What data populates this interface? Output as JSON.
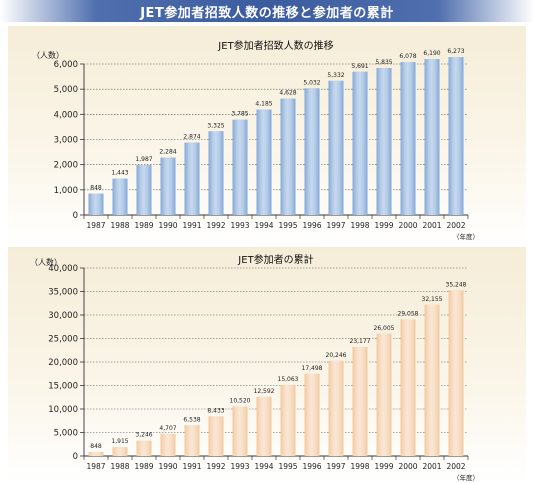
{
  "header": {
    "title": "JET参加者招致人数の推移と参加者の累計"
  },
  "chart_data": [
    {
      "type": "bar",
      "title": "JET参加者招致人数の推移",
      "ylabel": "（人数）",
      "xlabel": "（年度）",
      "categories": [
        "1987",
        "1988",
        "1989",
        "1990",
        "1991",
        "1992",
        "1993",
        "1994",
        "1995",
        "1996",
        "1997",
        "1998",
        "1999",
        "2000",
        "2001",
        "2002"
      ],
      "values": [
        848,
        1443,
        1987,
        2284,
        2874,
        3325,
        3785,
        4185,
        4628,
        5032,
        5332,
        5691,
        5835,
        6078,
        6190,
        6273
      ],
      "value_labels": [
        "848",
        "1,443",
        "1,987",
        "2,284",
        "2,874",
        "3,325",
        "3,785",
        "4,185",
        "4,628",
        "5,032",
        "5,332",
        "5,691",
        "5,835",
        "6,078",
        "6,190",
        "6,273"
      ],
      "ylim": [
        0,
        6000
      ],
      "yticks": [
        0,
        1000,
        2000,
        3000,
        4000,
        5000,
        6000
      ],
      "ytick_labels": [
        "0",
        "1,000",
        "2,000",
        "3,000",
        "4,000",
        "5,000",
        "6,000"
      ],
      "grid": true,
      "bar_color": "#7fa6d6"
    },
    {
      "type": "bar",
      "title": "JET参加者の累計",
      "ylabel": "（人数）",
      "xlabel": "（年度）",
      "categories": [
        "1987",
        "1988",
        "1989",
        "1990",
        "1991",
        "1992",
        "1993",
        "1994",
        "1995",
        "1996",
        "1997",
        "1998",
        "1999",
        "2000",
        "2001",
        "2002"
      ],
      "values": [
        848,
        1915,
        3246,
        4707,
        6538,
        8433,
        10520,
        12592,
        15063,
        17498,
        20246,
        23177,
        26005,
        29058,
        32155,
        35248
      ],
      "value_labels": [
        "848",
        "1,915",
        "3,246",
        "4,707",
        "6,538",
        "8,433",
        "10,520",
        "12,592",
        "15,063",
        "17,498",
        "20,246",
        "23,177",
        "26,005",
        "29,058",
        "32,155",
        "35,248"
      ],
      "ylim": [
        0,
        40000
      ],
      "yticks": [
        0,
        5000,
        10000,
        15000,
        20000,
        25000,
        30000,
        35000,
        40000
      ],
      "ytick_labels": [
        "0",
        "5,000",
        "10,000",
        "15,000",
        "20,000",
        "25,000",
        "30,000",
        "35,000",
        "40,000"
      ],
      "grid": true,
      "bar_color": "#f2c79c"
    }
  ]
}
